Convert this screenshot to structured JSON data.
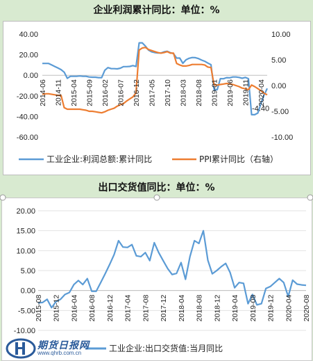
{
  "charts": {
    "profit": {
      "title": "企业利润累计同比：单位：%"
    },
    "export": {
      "title": "出口交货值同比：单位：%"
    }
  },
  "chart_data": [
    {
      "type": "line",
      "title": "企业利润累计同比：单位：%",
      "x": [
        "2014-06",
        "2014-07",
        "2014-08",
        "2014-09",
        "2014-10",
        "2014-11",
        "2014-12",
        "2015-01",
        "2015-02",
        "2015-03",
        "2015-04",
        "2015-05",
        "2015-06",
        "2015-07",
        "2015-08",
        "2015-09",
        "2015-10",
        "2015-11",
        "2015-12",
        "2016-01",
        "2016-02",
        "2016-03",
        "2016-04",
        "2016-05",
        "2016-06",
        "2016-07",
        "2016-08",
        "2016-09",
        "2016-10",
        "2016-11",
        "2016-12",
        "2017-01",
        "2017-02",
        "2017-03",
        "2017-04",
        "2017-05",
        "2017-06",
        "2017-07",
        "2017-08",
        "2017-09",
        "2017-10",
        "2017-11",
        "2017-12",
        "2018-01",
        "2018-02",
        "2018-03",
        "2018-04",
        "2018-05",
        "2018-06",
        "2018-07",
        "2018-08",
        "2018-09",
        "2018-10",
        "2018-11",
        "2018-12",
        "2019-01",
        "2019-02",
        "2019-03",
        "2019-04",
        "2019-05",
        "2019-06",
        "2019-07",
        "2019-08",
        "2019-09",
        "2019-10",
        "2019-11",
        "2019-12",
        "2020-01",
        "2020-02",
        "2020-03",
        "2020-04",
        "2020-05",
        "2020-06"
      ],
      "x_tick_labels": [
        "2014-06",
        "2014-11",
        "2015-04",
        "2015-09",
        "2016-02",
        "2016-07",
        "2016-12",
        "2017-05",
        "2017-10",
        "2018-03",
        "2018-08",
        "2019-01",
        "2019-06",
        "2019-11",
        "2020-04"
      ],
      "series": [
        {
          "name": "工业企业:利润总额:累计同比",
          "axis": "left",
          "color": "#5b9bd5",
          "values": [
            11.5,
            11.5,
            11.5,
            10.0,
            8.5,
            7.0,
            5.5,
            3.0,
            -3.0,
            -1.0,
            -1.0,
            -1.0,
            -0.7,
            -1.0,
            -1.0,
            -1.7,
            -1.9,
            -1.9,
            -2.3,
            -2.3,
            4.8,
            7.4,
            6.5,
            6.4,
            6.2,
            6.9,
            8.4,
            8.4,
            8.6,
            9.4,
            8.5,
            31.5,
            31.5,
            28.3,
            24.4,
            22.7,
            22.0,
            21.6,
            21.6,
            22.8,
            23.3,
            21.9,
            21.0,
            16.7,
            16.7,
            11.6,
            15.0,
            16.5,
            17.2,
            17.1,
            16.2,
            14.7,
            13.6,
            11.8,
            10.3,
            -14.0,
            -14.0,
            -3.3,
            -3.4,
            -2.3,
            -2.4,
            -1.7,
            -1.7,
            -2.1,
            -2.9,
            -2.1,
            -3.3,
            -38.3,
            -38.3,
            -36.7,
            -27.4,
            -19.3,
            -12.8
          ]
        },
        {
          "name": "PPI累计同比（右轴）",
          "axis": "right",
          "color": "#ed7d31",
          "values": [
            -1.7,
            -1.6,
            -1.6,
            -1.7,
            -1.8,
            -1.9,
            -1.9,
            -4.3,
            -4.6,
            -4.6,
            -4.6,
            -4.6,
            -4.6,
            -4.7,
            -4.8,
            -5.0,
            -5.0,
            -5.1,
            -5.2,
            -5.3,
            -5.1,
            -4.8,
            -4.6,
            -4.4,
            -4.0,
            -3.7,
            -3.5,
            -3.0,
            -2.6,
            -2.2,
            -1.4,
            6.9,
            7.3,
            7.4,
            7.0,
            6.8,
            6.6,
            6.4,
            6.3,
            6.4,
            6.6,
            6.3,
            6.3,
            4.3,
            4.0,
            3.8,
            3.8,
            3.9,
            4.1,
            4.1,
            4.1,
            4.1,
            4.0,
            3.6,
            3.5,
            0.1,
            0.1,
            0.2,
            0.3,
            0.4,
            0.3,
            0.2,
            0.0,
            -0.2,
            -0.5,
            -0.6,
            -0.8,
            0.1,
            -0.2,
            -0.6,
            -1.0,
            -1.5,
            -1.8
          ]
        }
      ],
      "y_left": {
        "ticks": [
          "40.00",
          "20.00",
          "0.00",
          "-20.00",
          "-40.00",
          "-60.00"
        ],
        "range": [
          -60,
          40
        ]
      },
      "y_right": {
        "ticks": [
          "10.00",
          "5.00",
          "0.00",
          "-5.00",
          "-10.00"
        ],
        "range": [
          -10,
          10
        ]
      },
      "annotation": "-4.40",
      "legend": "bottom",
      "grid": false
    },
    {
      "type": "line",
      "title": "出口交货值同比：单位：%",
      "x": [
        "2015-08",
        "2015-09",
        "2015-10",
        "2015-11",
        "2015-12",
        "2016-01",
        "2016-02",
        "2016-03",
        "2016-04",
        "2016-05",
        "2016-06",
        "2016-07",
        "2016-08",
        "2016-09",
        "2016-10",
        "2016-11",
        "2016-12",
        "2017-01",
        "2017-02",
        "2017-03",
        "2017-04",
        "2017-05",
        "2017-06",
        "2017-07",
        "2017-08",
        "2017-09",
        "2017-10",
        "2017-11",
        "2017-12",
        "2018-01",
        "2018-02",
        "2018-03",
        "2018-04",
        "2018-05",
        "2018-06",
        "2018-07",
        "2018-08",
        "2018-09",
        "2018-10",
        "2018-11",
        "2018-12",
        "2019-01",
        "2019-02",
        "2019-03",
        "2019-04",
        "2019-05",
        "2019-06",
        "2019-07",
        "2019-08",
        "2019-09",
        "2019-10",
        "2019-11",
        "2019-12",
        "2020-01",
        "2020-02",
        "2020-03",
        "2020-04",
        "2020-05",
        "2020-06",
        "2020-07",
        "2020-08"
      ],
      "x_tick_labels": [
        "2015-08",
        "2015-12",
        "2016-04",
        "2016-08",
        "2016-12",
        "2017-04",
        "2017-08",
        "2017-12",
        "2018-04",
        "2018-08",
        "2018-12",
        "2019-04",
        "2019-08",
        "2019-12",
        "2020-04",
        "2020-08"
      ],
      "series": [
        {
          "name": "工业企业:出口交货值:当月同比",
          "color": "#5b9bd5",
          "values": [
            -3.1,
            -3.0,
            -2.2,
            -4.3,
            -2.8,
            -2.2,
            -1.0,
            -0.5,
            1.5,
            2.5,
            1.5,
            3.0,
            -0.2,
            -0.2,
            2.0,
            4.2,
            6.5,
            9.0,
            12.5,
            10.9,
            10.8,
            11.5,
            8.7,
            8.5,
            9.5,
            7.5,
            12.0,
            9.5,
            7.5,
            5.5,
            4.0,
            4.3,
            7.0,
            2.8,
            8.5,
            12.5,
            11.8,
            15.0,
            7.6,
            4.2,
            5.0,
            6.0,
            6.8,
            4.5,
            0.7,
            2.0,
            1.8,
            -3.3,
            -1.0,
            -3.6,
            -3.3,
            0.5,
            1.0,
            2.0,
            3.0,
            2.0,
            -1.5,
            2.6,
            1.6,
            1.4,
            1.3
          ]
        }
      ],
      "y": {
        "ticks": [
          "20.00",
          "15.00",
          "10.00",
          "5.00",
          "0.00",
          "-5.00",
          "-10.00"
        ],
        "range": [
          -10,
          20
        ]
      },
      "legend": "bottom",
      "grid": true
    }
  ],
  "legend1": {
    "s1": "工业企业:利润总额:累计同比",
    "s2": "PPI累计同比（右轴）"
  },
  "legend2": {
    "s1": "工业企业:出口交货值:当月同比"
  },
  "logo": {
    "name": "期货日报网",
    "url": "www.qhrb.com.cn"
  }
}
